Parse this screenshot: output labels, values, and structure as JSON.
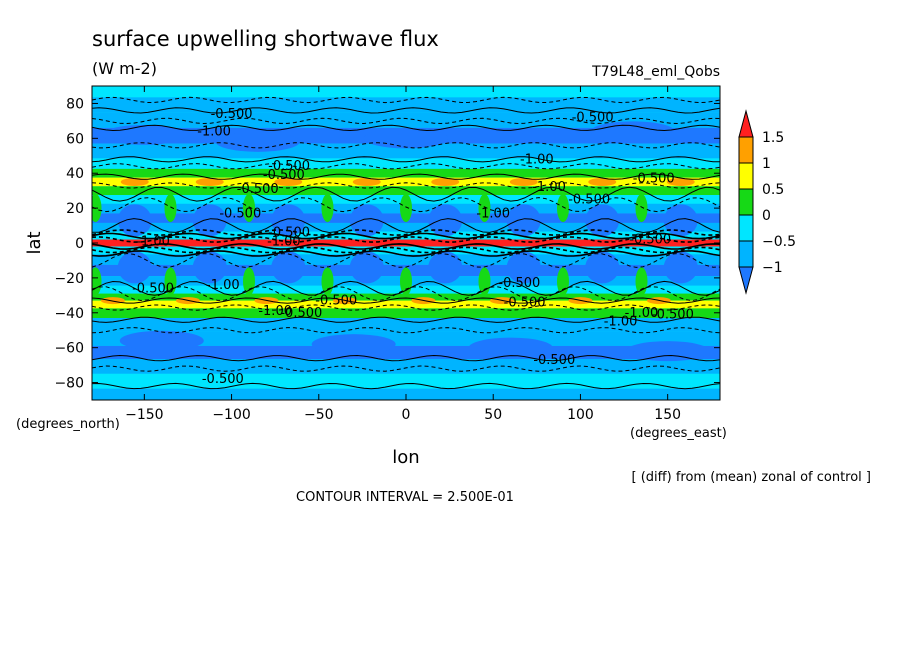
{
  "title": "surface upwelling shortwave flux",
  "units": "(W m-2)",
  "run_name": "T79L48_eml_Qobs",
  "footnote": "[ (diff) from (mean) zonal of control ]",
  "contour_interval": "CONTOUR INTERVAL = 2.500E-01",
  "colors": {
    "lt_-1": "#1e78ff",
    "-1_-0.5": "#00b4ff",
    "-0.5_0": "#00e6ff",
    "0_0.5": "#16d916",
    "0.5_1": "#ffff00",
    "1_1.5": "#ffa000",
    "gt_1.5": "#ff2020"
  },
  "chart_data": {
    "type": "heatmap",
    "title": "surface upwelling shortwave flux",
    "xlabel": "lon",
    "ylabel": "lat",
    "x_units": "(degrees_east)",
    "y_units": "(degrees_north)",
    "xlim": [
      -180,
      180
    ],
    "ylim": [
      -90,
      90
    ],
    "x_ticks": [
      -150,
      -100,
      -50,
      0,
      50,
      100,
      150
    ],
    "y_ticks": [
      80,
      60,
      40,
      20,
      0,
      -20,
      -40,
      -60,
      -80
    ],
    "colorbar_levels": [
      1.5,
      1,
      0.5,
      0,
      -0.5,
      -1
    ],
    "lat_band_values": [
      {
        "lat": 87,
        "value": -0.4
      },
      {
        "lat": 80,
        "value": -0.7
      },
      {
        "lat": 70,
        "value": -0.7
      },
      {
        "lat": 62,
        "value": -1.1
      },
      {
        "lat": 52,
        "value": -0.8
      },
      {
        "lat": 45,
        "value": -0.3
      },
      {
        "lat": 40,
        "value": 0.3
      },
      {
        "lat": 35,
        "value": 0.8
      },
      {
        "lat": 30,
        "value": 0.3
      },
      {
        "lat": 25,
        "value": -0.4
      },
      {
        "lat": 20,
        "value": -1.0
      },
      {
        "lat": 14,
        "value": -1.1
      },
      {
        "lat": 9,
        "value": -0.7
      },
      {
        "lat": 4,
        "value": -0.2
      },
      {
        "lat": 0,
        "value": 1.8
      },
      {
        "lat": -4,
        "value": -0.2
      },
      {
        "lat": -9,
        "value": -0.7
      },
      {
        "lat": -16,
        "value": -1.1
      },
      {
        "lat": -22,
        "value": -1.0
      },
      {
        "lat": -27,
        "value": -0.4
      },
      {
        "lat": -31,
        "value": 0.4
      },
      {
        "lat": -35,
        "value": 0.8
      },
      {
        "lat": -40,
        "value": 0.2
      },
      {
        "lat": -46,
        "value": -0.6
      },
      {
        "lat": -55,
        "value": -0.8
      },
      {
        "lat": -63,
        "value": -1.1
      },
      {
        "lat": -70,
        "value": -0.7
      },
      {
        "lat": -80,
        "value": -0.5
      },
      {
        "lat": -87,
        "value": -0.6
      }
    ],
    "wave_crest_longitudes": [
      -178,
      -135,
      -90,
      -45,
      0,
      45,
      90,
      135
    ],
    "contour_labels": [
      {
        "text": "-0.500",
        "lon": -100,
        "lat": 74
      },
      {
        "text": "-1.00",
        "lon": -110,
        "lat": 64
      },
      {
        "text": "-0.500",
        "lon": 107,
        "lat": 72
      },
      {
        "text": "-1.00",
        "lon": 75,
        "lat": 48
      },
      {
        "text": "-0.500",
        "lon": -67,
        "lat": 44
      },
      {
        "text": "-0.500",
        "lon": -70,
        "lat": 39
      },
      {
        "text": "-0.500",
        "lon": -85,
        "lat": 31
      },
      {
        "text": "-1.00",
        "lon": 82,
        "lat": 32
      },
      {
        "text": "-0.500",
        "lon": 142,
        "lat": 37
      },
      {
        "text": "-0.500",
        "lon": -95,
        "lat": 17
      },
      {
        "text": "-0.500",
        "lon": 105,
        "lat": 25
      },
      {
        "text": "-1.00",
        "lon": 50,
        "lat": 17
      },
      {
        "text": "-1.00",
        "lon": -145,
        "lat": 1
      },
      {
        "text": "-0.500",
        "lon": -67,
        "lat": 6
      },
      {
        "text": "-1.00",
        "lon": -70,
        "lat": 1
      },
      {
        "text": "-0.500",
        "lon": 140,
        "lat": 2
      },
      {
        "text": "-0.500",
        "lon": -145,
        "lat": -26
      },
      {
        "text": "-1.00",
        "lon": -105,
        "lat": -24
      },
      {
        "text": "-0.500",
        "lon": 65,
        "lat": -23
      },
      {
        "text": "-0.500",
        "lon": -40,
        "lat": -33
      },
      {
        "text": "-0.500",
        "lon": 68,
        "lat": -34
      },
      {
        "text": "-1.00",
        "lon": -75,
        "lat": -39
      },
      {
        "text": "-0.500",
        "lon": -60,
        "lat": -40
      },
      {
        "text": "-1.00",
        "lon": 123,
        "lat": -45
      },
      {
        "text": "-1.00",
        "lon": 135,
        "lat": -40
      },
      {
        "text": "-0.500",
        "lon": 153,
        "lat": -41
      },
      {
        "text": "-0.500",
        "lon": 85,
        "lat": -67
      },
      {
        "text": "-0.500",
        "lon": -105,
        "lat": -78
      }
    ]
  }
}
